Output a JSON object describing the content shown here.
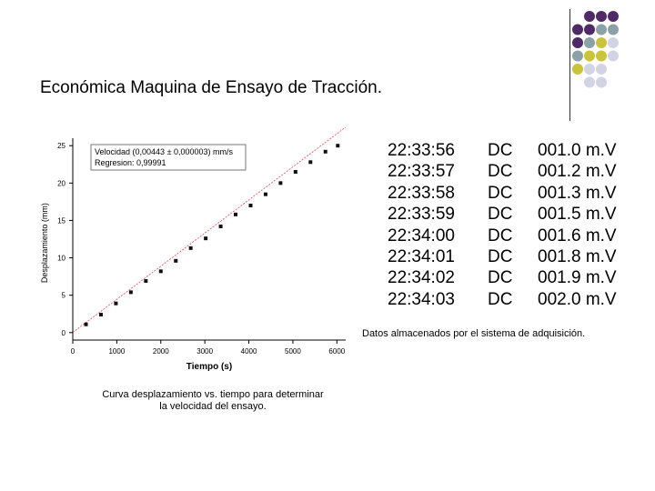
{
  "slide": {
    "title": "Económica Maquina de Ensayo de Tracción.",
    "caption_right": "Datos almacenados por el sistema de adquisición.",
    "caption_left_1": "Curva desplazamiento vs. tiempo para determinar",
    "caption_left_2": "la velocidad del ensayo.",
    "accent_colors": {
      "purple": "#4f2a66",
      "teal": "#8aa2a6",
      "olive": "#c9c43a",
      "lavender": "#d3d3e6"
    }
  },
  "data_log": {
    "rows": [
      {
        "time": "22:33:56",
        "mode": "DC",
        "value": "001.0 m.V"
      },
      {
        "time": "22:33:57",
        "mode": "DC",
        "value": "001.2 m.V"
      },
      {
        "time": "22:33:58",
        "mode": "DC",
        "value": "001.3 m.V"
      },
      {
        "time": "22:33:59",
        "mode": "DC",
        "value": "001.5 m.V"
      },
      {
        "time": "22:34:00",
        "mode": "DC",
        "value": "001.6 m.V"
      },
      {
        "time": "22:34:01",
        "mode": "DC",
        "value": "001.8 m.V"
      },
      {
        "time": "22:34:02",
        "mode": "DC",
        "value": "001.9 m.V"
      },
      {
        "time": "22:34:03",
        "mode": "DC",
        "value": "002.0 m.V"
      }
    ]
  },
  "chart_data": {
    "type": "scatter",
    "title": "",
    "xlabel": "Tiempo (s)",
    "ylabel": "Desplazamiento (mm)",
    "xlim": [
      0,
      6200
    ],
    "ylim": [
      -1,
      26
    ],
    "xticks": [
      0,
      1000,
      2000,
      3000,
      4000,
      5000,
      6000
    ],
    "yticks": [
      0,
      5,
      10,
      15,
      20,
      25
    ],
    "annotation": [
      "Velocidad (0,00443 ± 0,000003) mm/s",
      "Regresion: 0,99991"
    ],
    "series": [
      {
        "points": [
          [
            300,
            1.1
          ],
          [
            640,
            2.4
          ],
          [
            980,
            3.9
          ],
          [
            1320,
            5.4
          ],
          [
            1660,
            6.9
          ],
          [
            2000,
            8.2
          ],
          [
            2340,
            9.6
          ],
          [
            2680,
            11.3
          ],
          [
            3020,
            12.6
          ],
          [
            3360,
            14.2
          ],
          [
            3700,
            15.8
          ],
          [
            4040,
            17.0
          ],
          [
            4380,
            18.5
          ],
          [
            4720,
            20.0
          ],
          [
            5060,
            21.5
          ],
          [
            5400,
            22.8
          ],
          [
            5740,
            24.2
          ],
          [
            6020,
            25.0
          ]
        ],
        "fit": {
          "slope": 0.00443,
          "intercept": 0.02
        }
      }
    ]
  }
}
